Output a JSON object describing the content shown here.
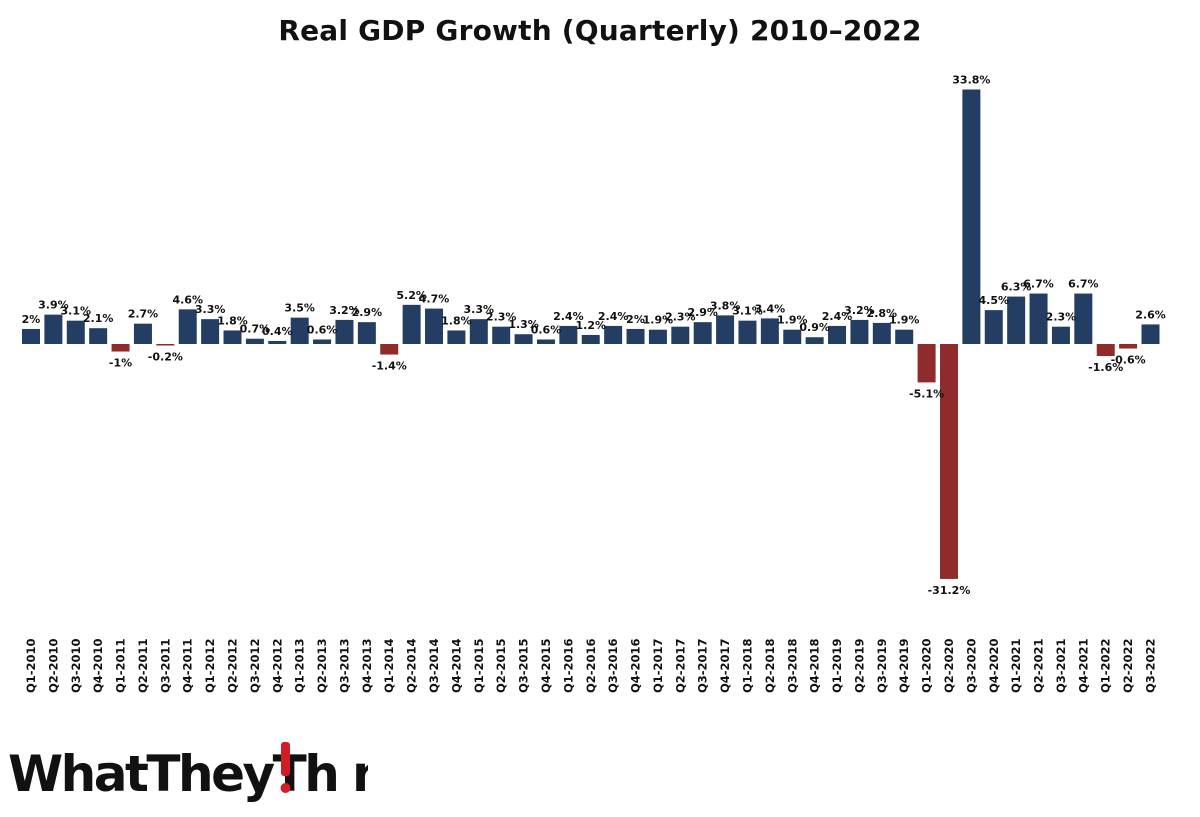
{
  "colors": {
    "positive": "#233d63",
    "negative": "#8f2c2b",
    "text": "#111111",
    "logo_accent": "#d11d24"
  },
  "branding": {
    "logo_text": "WhatTheyThink"
  },
  "chart_data": {
    "type": "bar",
    "title": "Real GDP Growth (Quarterly) 2010–2022",
    "xlabel": "",
    "ylabel": "",
    "ylim": [
      -31.2,
      33.8
    ],
    "grid": false,
    "legend": "none",
    "categories": [
      "Q1-2010",
      "Q2-2010",
      "Q3-2010",
      "Q4-2010",
      "Q1-2011",
      "Q2-2011",
      "Q3-2011",
      "Q4-2011",
      "Q1-2012",
      "Q2-2012",
      "Q3-2012",
      "Q4-2012",
      "Q1-2013",
      "Q2-2013",
      "Q3-2013",
      "Q4-2013",
      "Q1-2014",
      "Q2-2014",
      "Q3-2014",
      "Q4-2014",
      "Q1-2015",
      "Q2-2015",
      "Q3-2015",
      "Q4-2015",
      "Q1-2016",
      "Q2-2016",
      "Q3-2016",
      "Q4-2016",
      "Q1-2017",
      "Q2-2017",
      "Q3-2017",
      "Q4-2017",
      "Q1-2018",
      "Q2-2018",
      "Q3-2018",
      "Q4-2018",
      "Q1-2019",
      "Q2-2019",
      "Q3-2019",
      "Q4-2019",
      "Q1-2020",
      "Q2-2020",
      "Q3-2020",
      "Q4-2020",
      "Q1-2021",
      "Q2-2021",
      "Q3-2021",
      "Q4-2021",
      "Q1-2022",
      "Q2-2022",
      "Q3-2022"
    ],
    "values": [
      2,
      3.9,
      3.1,
      2.1,
      -1,
      2.7,
      -0.2,
      4.6,
      3.3,
      1.8,
      0.7,
      0.4,
      3.5,
      0.6,
      3.2,
      2.9,
      -1.4,
      5.2,
      4.7,
      1.8,
      3.3,
      2.3,
      1.3,
      0.6,
      2.4,
      1.2,
      2.4,
      2,
      1.9,
      2.3,
      2.9,
      3.8,
      3.1,
      3.4,
      1.9,
      0.9,
      2.4,
      3.2,
      2.8,
      1.9,
      -5.1,
      -31.2,
      33.8,
      4.5,
      6.3,
      6.7,
      2.3,
      6.7,
      -1.6,
      -0.6,
      2.6
    ],
    "labels": [
      "2%",
      "3.9%",
      "3.1%",
      "2.1%",
      "-1%",
      "2.7%",
      "-0.2%",
      "4.6%",
      "3.3%",
      "1.8%",
      "0.7%",
      "0.4%",
      "3.5%",
      "0.6%",
      "3.2%",
      "2.9%",
      "-1.4%",
      "5.2%",
      "4.7%",
      "1.8%",
      "3.3%",
      "2.3%",
      "1.3%",
      "0.6%",
      "2.4%",
      "1.2%",
      "2.4%",
      "2%",
      "1.9%",
      "2.3%",
      "2.9%",
      "3.8%",
      "3.1%",
      "3.4%",
      "1.9%",
      "0.9%",
      "2.4%",
      "3.2%",
      "2.8%",
      "1.9%",
      "-5.1%",
      "-31.2%",
      "33.8%",
      "4.5%",
      "6.3%",
      "6.7%",
      "2.3%",
      "6.7%",
      "-1.6%",
      "-0.6%",
      "2.6%"
    ]
  }
}
